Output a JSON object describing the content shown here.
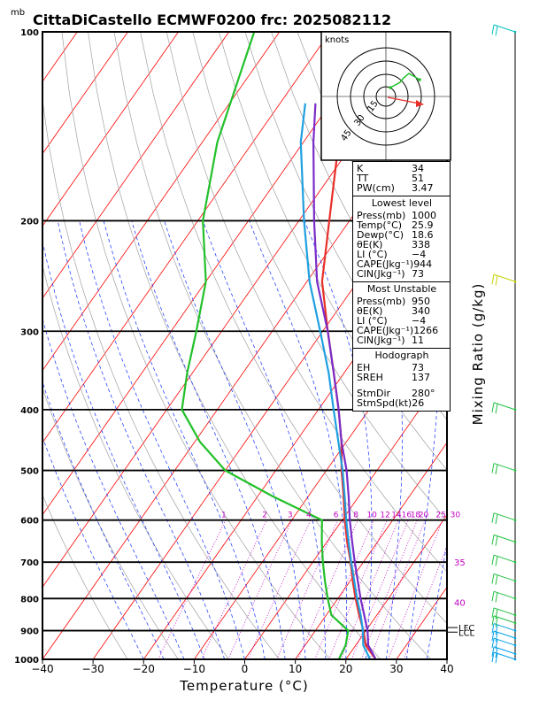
{
  "header": {
    "unit_label": "mb",
    "title": "CittaDiCastello ECMWF0200  frc: 2025082112"
  },
  "colors": {
    "temperature": "#e8302a",
    "dewpoint": "#22c02a",
    "parcel": "#7a2cc8",
    "wetbulb": "#1ea0e0",
    "isotherm": "#ff0000",
    "dry_adiabat": "#a0a0a0",
    "moist_adiabat": "#1030ff",
    "mixing_ratio": "#c000c0",
    "wind_barb": "#00c0c0"
  },
  "chart_data": {
    "type": "line",
    "title": "CittaDiCastello ECMWF0200  frc: 2025082112",
    "xlabel": "Temperature (°C)",
    "ylabel": "mb",
    "right_label": "Mixing Ratio (g/kg)",
    "xlim": [
      -40,
      40
    ],
    "ylim_mb": [
      1000,
      100
    ],
    "x_ticks": [
      "−40",
      "−30",
      "−20",
      "−10",
      "0",
      "10",
      "20",
      "30",
      "40"
    ],
    "pressure_levels": [
      1000,
      900,
      800,
      700,
      600,
      500,
      400,
      300,
      200,
      100
    ],
    "pressure_labels": [
      "1000",
      "900",
      "800",
      "700",
      "600",
      "500",
      "400",
      "300",
      "200",
      "100"
    ],
    "mixing_ratio_labels": [
      "1",
      "2",
      "3",
      "4",
      "6",
      "8",
      "10",
      "12",
      "14",
      "16",
      "18",
      "20",
      "25",
      "30"
    ],
    "isotherm_labels": [
      "35",
      "40"
    ],
    "level_labels": [
      "LCL",
      "LFC"
    ],
    "series": [
      {
        "name": "Temperature",
        "points": [
          [
            1000,
            25.9
          ],
          [
            950,
            22
          ],
          [
            900,
            19.5
          ],
          [
            850,
            16.5
          ],
          [
            800,
            13.5
          ],
          [
            750,
            10.5
          ],
          [
            700,
            7.5
          ],
          [
            650,
            4
          ],
          [
            600,
            0.5
          ],
          [
            550,
            -3
          ],
          [
            500,
            -7
          ],
          [
            450,
            -11
          ],
          [
            400,
            -16
          ],
          [
            350,
            -22
          ],
          [
            300,
            -29
          ],
          [
            250,
            -37
          ],
          [
            200,
            -44
          ],
          [
            150,
            -53
          ],
          [
            100,
            -63
          ]
        ]
      },
      {
        "name": "Dewpoint",
        "points": [
          [
            1000,
            18.6
          ],
          [
            950,
            18.0
          ],
          [
            900,
            16.5
          ],
          [
            850,
            11
          ],
          [
            800,
            8
          ],
          [
            750,
            5
          ],
          [
            700,
            2
          ],
          [
            650,
            -1
          ],
          [
            600,
            -4
          ],
          [
            550,
            -17
          ],
          [
            500,
            -30
          ],
          [
            450,
            -39
          ],
          [
            400,
            -47
          ],
          [
            350,
            -51
          ],
          [
            300,
            -55
          ],
          [
            250,
            -60
          ],
          [
            200,
            -69
          ],
          [
            150,
            -77
          ],
          [
            100,
            -85
          ]
        ]
      },
      {
        "name": "Parcel",
        "points": [
          [
            1000,
            25.9
          ],
          [
            950,
            22.5
          ],
          [
            900,
            20.3
          ],
          [
            850,
            17.5
          ],
          [
            800,
            14.5
          ],
          [
            750,
            11.5
          ],
          [
            700,
            8.3
          ],
          [
            650,
            5
          ],
          [
            600,
            1.5
          ],
          [
            550,
            -2
          ],
          [
            500,
            -6
          ],
          [
            450,
            -11
          ],
          [
            400,
            -16
          ],
          [
            350,
            -22
          ],
          [
            300,
            -29
          ],
          [
            250,
            -38
          ],
          [
            200,
            -47
          ],
          [
            150,
            -58
          ],
          [
            130,
            -63
          ]
        ]
      },
      {
        "name": "Wet-bulb",
        "points": [
          [
            1000,
            24.8
          ],
          [
            950,
            21.5
          ],
          [
            900,
            19.4
          ],
          [
            850,
            16.8
          ],
          [
            800,
            13.8
          ],
          [
            750,
            10.8
          ],
          [
            700,
            7.6
          ],
          [
            650,
            4.3
          ],
          [
            600,
            0.8
          ],
          [
            550,
            -2.8
          ],
          [
            500,
            -6.8
          ],
          [
            450,
            -11.6
          ],
          [
            400,
            -17
          ],
          [
            350,
            -23
          ],
          [
            300,
            -30.5
          ],
          [
            250,
            -39.5
          ],
          [
            200,
            -49
          ],
          [
            150,
            -60.5
          ],
          [
            130,
            -65
          ]
        ]
      }
    ],
    "hodograph": {
      "units": "knots",
      "ring_labels": [
        "15",
        "30",
        "45"
      ]
    }
  },
  "indices": {
    "top": [
      {
        "label": "K",
        "value": "34"
      },
      {
        "label": "TT",
        "value": "51"
      },
      {
        "label": "PW(cm)",
        "value": "3.47"
      }
    ],
    "lowest": {
      "heading": "Lowest level",
      "rows": [
        {
          "label": "Press(mb)",
          "value": "1000"
        },
        {
          "label": "Temp(°C)",
          "value": "25.9"
        },
        {
          "label": "Dewp(°C)",
          "value": "18.6"
        },
        {
          "label": "θE(K)",
          "value": "338"
        },
        {
          "label": "LI  (°C)",
          "value": "−4"
        },
        {
          "label": "CAPE(Jkg⁻¹)",
          "value": "944"
        },
        {
          "label": "CIN(Jkg⁻¹)",
          "value": "73"
        }
      ]
    },
    "unstable": {
      "heading": "Most Unstable",
      "rows": [
        {
          "label": "Press(mb)",
          "value": "950"
        },
        {
          "label": "θE(K)",
          "value": "340"
        },
        {
          "label": "LI  (°C)",
          "value": "−4"
        },
        {
          "label": "CAPE(Jkg⁻¹)",
          "value": "1266"
        },
        {
          "label": "CIN(Jkg⁻¹)",
          "value": "11"
        }
      ]
    },
    "hodo": {
      "heading": "Hodograph",
      "rows": [
        {
          "label": "EH",
          "value": "73"
        },
        {
          "label": "SREH",
          "value": "137"
        }
      ],
      "rows2": [
        {
          "label": "StmDir",
          "value": "280°"
        },
        {
          "label": "StmSpd(kt)",
          "value": "26"
        }
      ]
    }
  }
}
